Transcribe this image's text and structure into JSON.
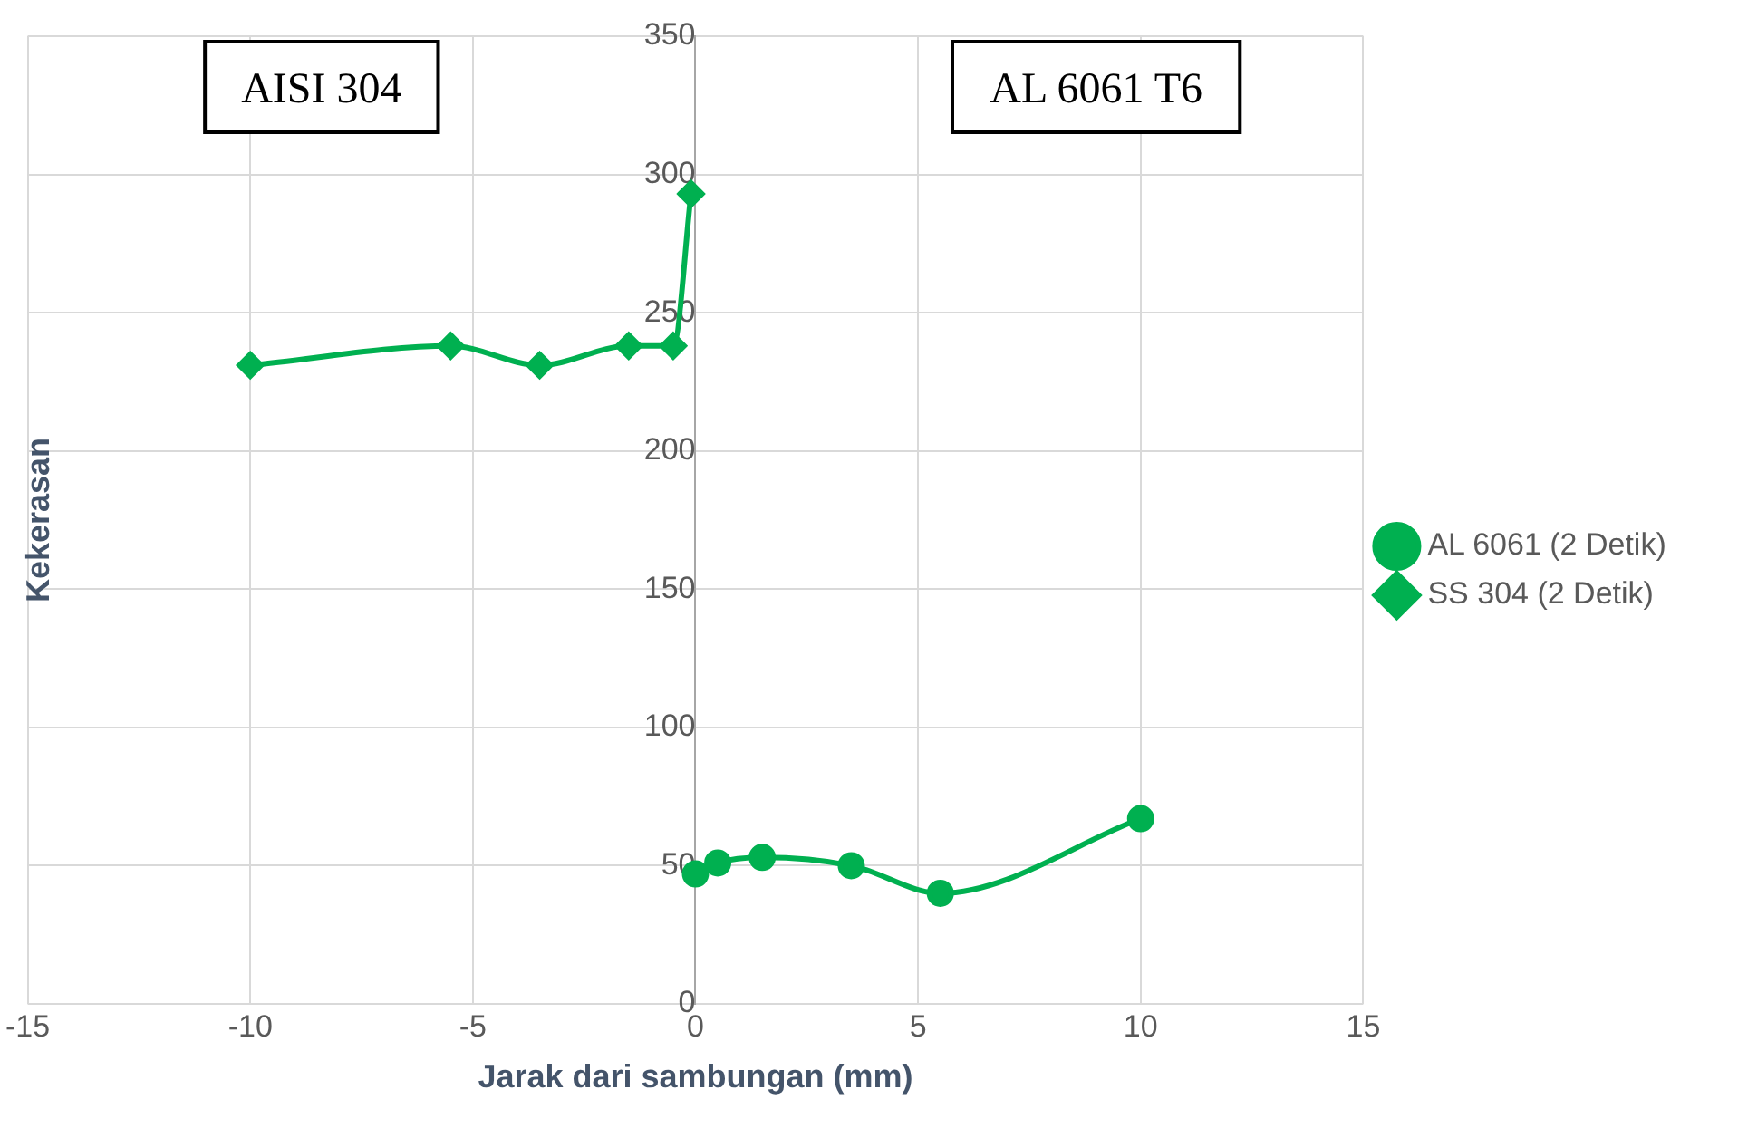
{
  "chart_data": {
    "type": "line",
    "xlabel": "Jarak dari sambungan (mm)",
    "ylabel": "Kekerasan",
    "xlim": [
      -15,
      15
    ],
    "xticks": [
      -15,
      -10,
      -5,
      0,
      5,
      10,
      15
    ],
    "ylim": [
      0,
      350
    ],
    "yticks": [
      0,
      50,
      100,
      150,
      200,
      250,
      300,
      350
    ],
    "grid": true,
    "legend": "right",
    "annotations": [
      "AISI 304",
      "AL 6061 T6"
    ],
    "series": [
      {
        "name": "AL 6061 (2 Detik)",
        "color": "#00b050",
        "marker": "circle",
        "x": [
          0,
          0.5,
          1.5,
          3.5,
          5.5,
          10
        ],
        "values": [
          47,
          51,
          53,
          50,
          40,
          67
        ]
      },
      {
        "name": "SS 304 (2 Detik)",
        "color": "#00b050",
        "marker": "diamond",
        "x": [
          -10,
          -5.5,
          -3.5,
          -1.5,
          -0.5,
          -0.1
        ],
        "values": [
          231,
          238,
          231,
          238,
          238,
          293
        ]
      }
    ]
  }
}
